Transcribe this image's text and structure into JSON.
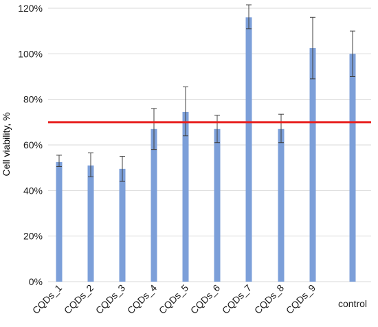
{
  "chart_data": {
    "type": "bar",
    "title": "",
    "xlabel": "",
    "ylabel": "Cell viability, %",
    "ylim": [
      0,
      120
    ],
    "yticks": [
      0,
      20,
      40,
      60,
      80,
      100,
      120
    ],
    "ytick_labels": [
      "0%",
      "20%",
      "40%",
      "60%",
      "80%",
      "100%",
      "120%"
    ],
    "grid": "horizontal",
    "legend": "none",
    "categories": [
      "CQDs_1",
      "CQDs_2",
      "CQDs_3",
      "CQDs_4",
      "CQDs_5",
      "CQDs_6",
      "CQDs_7",
      "CQDs_8",
      "CQDs_9",
      "control"
    ],
    "values": [
      52.5,
      51,
      49.5,
      67,
      74.5,
      67,
      116,
      67,
      102.5,
      100
    ],
    "error_low": [
      50.5,
      46,
      44,
      58,
      64,
      61,
      111,
      61,
      89,
      90
    ],
    "error_high": [
      55.5,
      56.5,
      55,
      76,
      85.5,
      73,
      121.5,
      73.5,
      116,
      110
    ],
    "threshold": 70,
    "colors": {
      "bar": "#7c9fd9",
      "threshold_line": "#e8201f",
      "grid": "#d9d9d9",
      "error_bar": "#404040"
    }
  }
}
